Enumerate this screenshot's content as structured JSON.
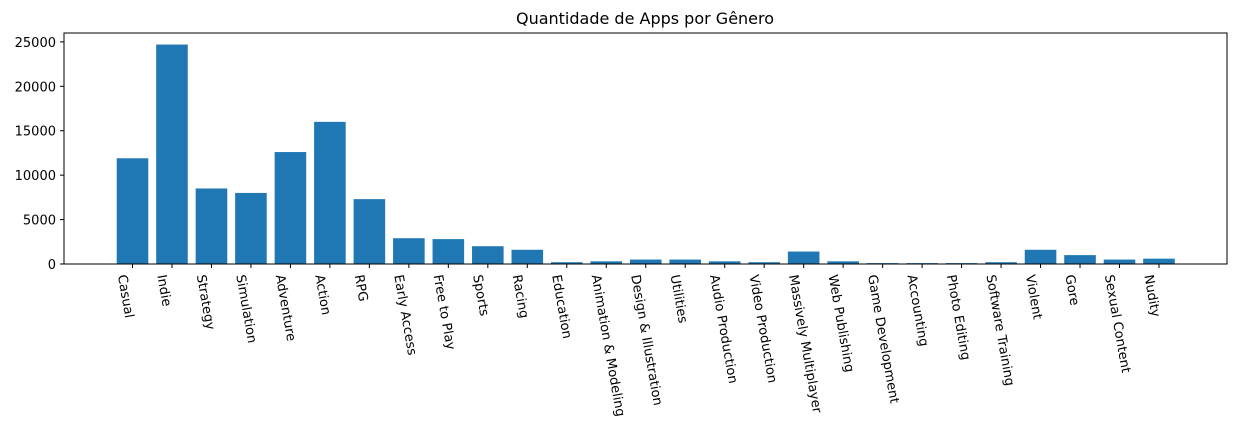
{
  "chart_data": {
    "type": "bar",
    "title": "Quantidade de Apps por Gênero",
    "xlabel": "",
    "ylabel": "",
    "ylim": [
      0,
      26000
    ],
    "yticks": [
      0,
      5000,
      10000,
      15000,
      20000,
      25000
    ],
    "grid": false,
    "bar_color": "#1f77b4",
    "categories": [
      "Casual",
      "Indie",
      "Strategy",
      "Simulation",
      "Adventure",
      "Action",
      "RPG",
      "Early Access",
      "Free to Play",
      "Sports",
      "Racing",
      "Education",
      "Animation & Modeling",
      "Design & Illustration",
      "Utilities",
      "Audio Production",
      "Video Production",
      "Massively Multiplayer",
      "Web Publishing",
      "Game Development",
      "Accounting",
      "Photo Editing",
      "Software Training",
      "Violent",
      "Gore",
      "Sexual Content",
      "Nudity"
    ],
    "values": [
      11900,
      24700,
      8500,
      8000,
      12600,
      16000,
      7300,
      2900,
      2800,
      2000,
      1600,
      200,
      300,
      500,
      500,
      300,
      200,
      1400,
      300,
      100,
      100,
      100,
      200,
      1600,
      1000,
      500,
      600
    ]
  }
}
